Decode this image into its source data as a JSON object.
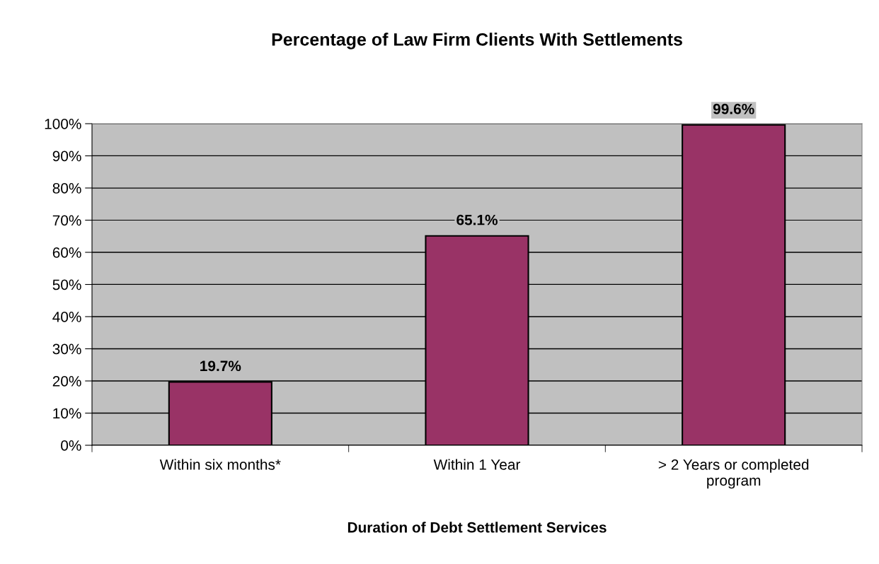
{
  "chart_data": {
    "type": "bar",
    "title": "Percentage of Law Firm Clients With Settlements",
    "xlabel": "Duration of Debt Settlement Services",
    "categories": [
      "Within six months*",
      "Within 1 Year",
      "> 2 Years or completed\nprogram"
    ],
    "values": [
      19.7,
      65.1,
      99.6
    ],
    "value_labels": [
      "19.7%",
      "65.1%",
      "99.6%"
    ],
    "color": "#993366",
    "ylim": [
      0,
      100
    ],
    "yticks": [
      {
        "value": 0,
        "label": "0%"
      },
      {
        "value": 10,
        "label": "10%"
      },
      {
        "value": 20,
        "label": "20%"
      },
      {
        "value": 30,
        "label": "30%"
      },
      {
        "value": 40,
        "label": "40%"
      },
      {
        "value": 50,
        "label": "50%"
      },
      {
        "value": 60,
        "label": "60%"
      },
      {
        "value": 70,
        "label": "70%"
      },
      {
        "value": 80,
        "label": "80%"
      },
      {
        "value": 90,
        "label": "90%"
      },
      {
        "value": 100,
        "label": "100%"
      }
    ],
    "grid": "y",
    "legend": false
  }
}
